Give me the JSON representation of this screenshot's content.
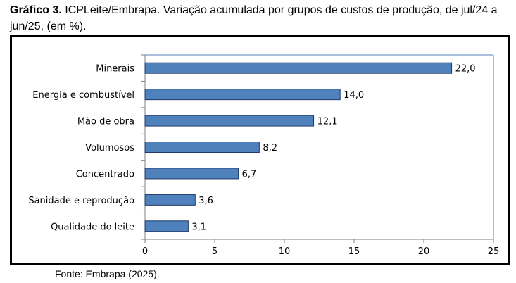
{
  "caption": {
    "bold": "Gráfico 3.",
    "text": " ICPLeite/Embrapa. Variação acumulada por grupos de custos de produção, de jul/24 a jun/25, (em %)."
  },
  "source": "Fonte: Embrapa (2025).",
  "chart_data": {
    "type": "bar",
    "orientation": "horizontal",
    "categories": [
      "Minerais",
      "Energia e combustível",
      "Mão de obra",
      "Volumosos",
      "Concentrado",
      "Sanidade e reprodução",
      "Qualidade do leite"
    ],
    "values": [
      22.0,
      14.0,
      12.1,
      8.2,
      6.7,
      3.6,
      3.1
    ],
    "value_labels": [
      "22,0",
      "14,0",
      "12,1",
      "8,2",
      "6,7",
      "3,6",
      "3,1"
    ],
    "xlim": [
      0,
      25
    ],
    "x_ticks": [
      0,
      5,
      10,
      15,
      20,
      25
    ],
    "x_tick_labels": [
      "0",
      "5",
      "10",
      "15",
      "20",
      "25"
    ],
    "bar_color": "#4f81bd",
    "bar_edge_color": "#1f3864",
    "plot_border_color": "#4f81bd",
    "grid": false,
    "legend": false
  }
}
